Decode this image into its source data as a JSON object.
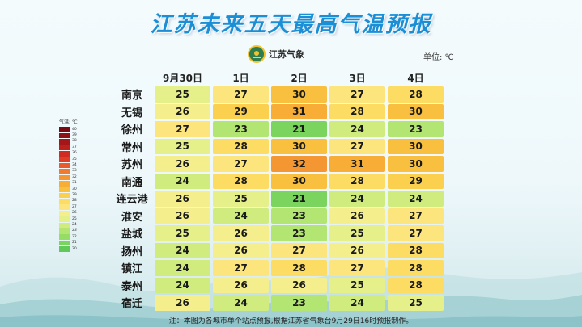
{
  "title": "江苏未来五天最高气温预报",
  "logo": {
    "text": "江苏气象",
    "icon": "jiangsu-meteorology-emblem"
  },
  "unit_label": "单位: ℃",
  "legend": {
    "title": "气温: ℃",
    "levels": [
      {
        "label": "40",
        "color": "#7a0a12"
      },
      {
        "label": "39",
        "color": "#8f1015"
      },
      {
        "label": "38",
        "color": "#a51618"
      },
      {
        "label": "37",
        "color": "#bd1f1c"
      },
      {
        "label": "36",
        "color": "#d12c22"
      },
      {
        "label": "35",
        "color": "#e03e26"
      },
      {
        "label": "34",
        "color": "#ea5a2a"
      },
      {
        "label": "33",
        "color": "#f07a2e"
      },
      {
        "label": "32",
        "color": "#f49732"
      },
      {
        "label": "31",
        "color": "#f7ad36"
      },
      {
        "label": "30",
        "color": "#f9bf3e"
      },
      {
        "label": "29",
        "color": "#fbd04e"
      },
      {
        "label": "28",
        "color": "#fcdc62"
      },
      {
        "label": "27",
        "color": "#fbe57c"
      },
      {
        "label": "26",
        "color": "#f4ef8c"
      },
      {
        "label": "25",
        "color": "#e6f08a"
      },
      {
        "label": "24",
        "color": "#d0ec7e"
      },
      {
        "label": "23",
        "color": "#b3e572"
      },
      {
        "label": "22",
        "color": "#96dd66"
      },
      {
        "label": "21",
        "color": "#7bd45e"
      },
      {
        "label": "20",
        "color": "#5fca5a"
      }
    ]
  },
  "columns": [
    "9月30日",
    "1日",
    "2日",
    "3日",
    "4日"
  ],
  "rows": [
    {
      "city": "南京",
      "values": [
        25,
        27,
        30,
        27,
        28
      ]
    },
    {
      "city": "无锡",
      "values": [
        26,
        29,
        31,
        28,
        30
      ]
    },
    {
      "city": "徐州",
      "values": [
        27,
        23,
        21,
        24,
        23
      ]
    },
    {
      "city": "常州",
      "values": [
        25,
        28,
        30,
        27,
        30
      ]
    },
    {
      "city": "苏州",
      "values": [
        26,
        27,
        32,
        31,
        30
      ]
    },
    {
      "city": "南通",
      "values": [
        24,
        28,
        30,
        28,
        29
      ]
    },
    {
      "city": "连云港",
      "values": [
        26,
        25,
        21,
        24,
        24
      ]
    },
    {
      "city": "淮安",
      "values": [
        26,
        24,
        23,
        26,
        27
      ]
    },
    {
      "city": "盐城",
      "values": [
        25,
        26,
        23,
        25,
        27
      ]
    },
    {
      "city": "扬州",
      "values": [
        24,
        26,
        27,
        26,
        28
      ]
    },
    {
      "city": "镇江",
      "values": [
        24,
        27,
        28,
        27,
        28
      ]
    },
    {
      "city": "泰州",
      "values": [
        24,
        26,
        26,
        25,
        28
      ]
    },
    {
      "city": "宿迁",
      "values": [
        26,
        24,
        23,
        24,
        25
      ]
    }
  ],
  "note": "注：本图为各城市单个站点预报,根据江苏省气象台9月29日16时预报制作。"
}
